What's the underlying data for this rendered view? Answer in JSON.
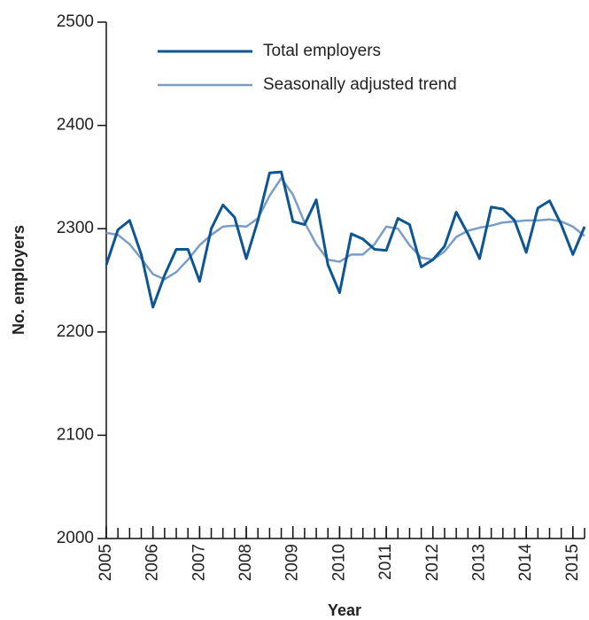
{
  "chart_data": {
    "type": "line",
    "x_label": "Year",
    "y_label": "No. employers",
    "x": [
      2005,
      2005.25,
      2005.5,
      2005.75,
      2006,
      2006.25,
      2006.5,
      2006.75,
      2007,
      2007.25,
      2007.5,
      2007.75,
      2008,
      2008.25,
      2008.5,
      2008.75,
      2009,
      2009.25,
      2009.5,
      2009.75,
      2010,
      2010.25,
      2010.5,
      2010.75,
      2011,
      2011.25,
      2011.5,
      2011.75,
      2012,
      2012.25,
      2012.5,
      2012.75,
      2013,
      2013.25,
      2013.5,
      2013.75,
      2014,
      2014.25,
      2014.5,
      2014.75,
      2015,
      2015.25
    ],
    "series": [
      {
        "name": "Total employers",
        "color": "#0d5593",
        "values": [
          2265,
          2299,
          2308,
          2275,
          2224,
          2255,
          2280,
          2280,
          2249,
          2300,
          2323,
          2311,
          2271,
          2308,
          2354,
          2355,
          2307,
          2304,
          2328,
          2265,
          2238,
          2295,
          2290,
          2280,
          2279,
          2310,
          2304,
          2263,
          2270,
          2283,
          2316,
          2295,
          2271,
          2321,
          2319,
          2308,
          2277,
          2320,
          2327,
          2304,
          2275,
          2302
        ]
      },
      {
        "name": "Seasonally adjusted trend",
        "color": "#7a9cc9",
        "values": [
          2296,
          2294,
          2285,
          2271,
          2256,
          2251,
          2258,
          2270,
          2284,
          2294,
          2302,
          2303,
          2302,
          2310,
          2332,
          2349,
          2333,
          2306,
          2285,
          2270,
          2268,
          2275,
          2275,
          2285,
          2302,
          2300,
          2284,
          2272,
          2270,
          2278,
          2292,
          2298,
          2301,
          2303,
          2306,
          2307,
          2308,
          2308,
          2309,
          2307,
          2302,
          2293
        ]
      }
    ],
    "xlim": [
      2005,
      2015.25
    ],
    "xticks": [
      2005,
      2006,
      2007,
      2008,
      2009,
      2010,
      2011,
      2012,
      2013,
      2014,
      2015
    ],
    "ylim": [
      2000,
      2500
    ],
    "yticks": [
      2000,
      2100,
      2200,
      2300,
      2400,
      2500
    ],
    "legend": "upper left",
    "grid": false
  }
}
